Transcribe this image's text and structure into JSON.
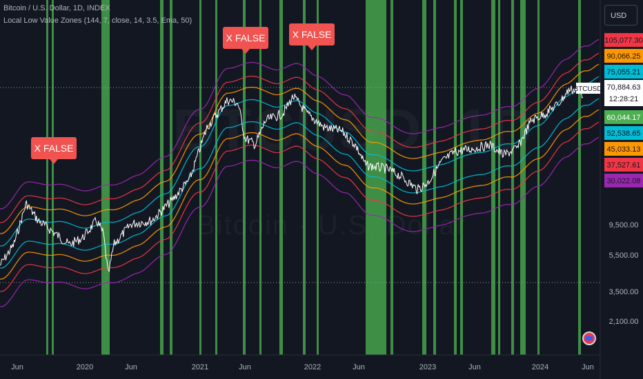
{
  "header": {
    "symbol_line": "Bitcoin / U.S. Dollar, 1D, INDEX",
    "indicator_line": "Local Low Value Zones (144, 7, close, 14, 3.5, Ema, 50)"
  },
  "currency_button": "USD",
  "watermark": {
    "symbol": "BTCUSD, 1D",
    "name": "Bitcoin · U.S. Dollar"
  },
  "chart_data": {
    "type": "line",
    "y_scale": "log",
    "x_ticks": [
      "Jun",
      "2020",
      "Jun",
      "2021",
      "Jun",
      "2022",
      "Jun",
      "2023",
      "Jun",
      "2024",
      "Jun"
    ],
    "y_ticks": [
      9500.0,
      5500.0,
      3500.0,
      2100.0
    ],
    "y_tick_labels": [
      "9,500.00",
      "5,500.00",
      "3,500.00",
      "2,100.00"
    ],
    "last_price_label": "BTCUSD",
    "last_price": "70,884.63",
    "countdown": "12:28:21",
    "band_levels": [
      {
        "label": "105,077.30",
        "color": "#f23645"
      },
      {
        "label": "90,066.25",
        "color": "#ff9800"
      },
      {
        "label": "75,055.21",
        "color": "#00bcd4"
      },
      {
        "label": "60,044.17",
        "color": "#4caf50"
      },
      {
        "label": "52,538.65",
        "color": "#00bcd4"
      },
      {
        "label": "45,033.13",
        "color": "#ff9800"
      },
      {
        "label": "37,527.61",
        "color": "#f23645"
      },
      {
        "label": "30,022.08",
        "color": "#9c27b0"
      }
    ],
    "band_colors": [
      "#9c27b0",
      "#f23645",
      "#ff9800",
      "#00bcd4",
      "#00bcd4",
      "#ff9800",
      "#f23645",
      "#9c27b0"
    ],
    "annotations": [
      "X FALSE",
      "X FALSE",
      "X FALSE"
    ],
    "zone_color": "#4caf50"
  }
}
